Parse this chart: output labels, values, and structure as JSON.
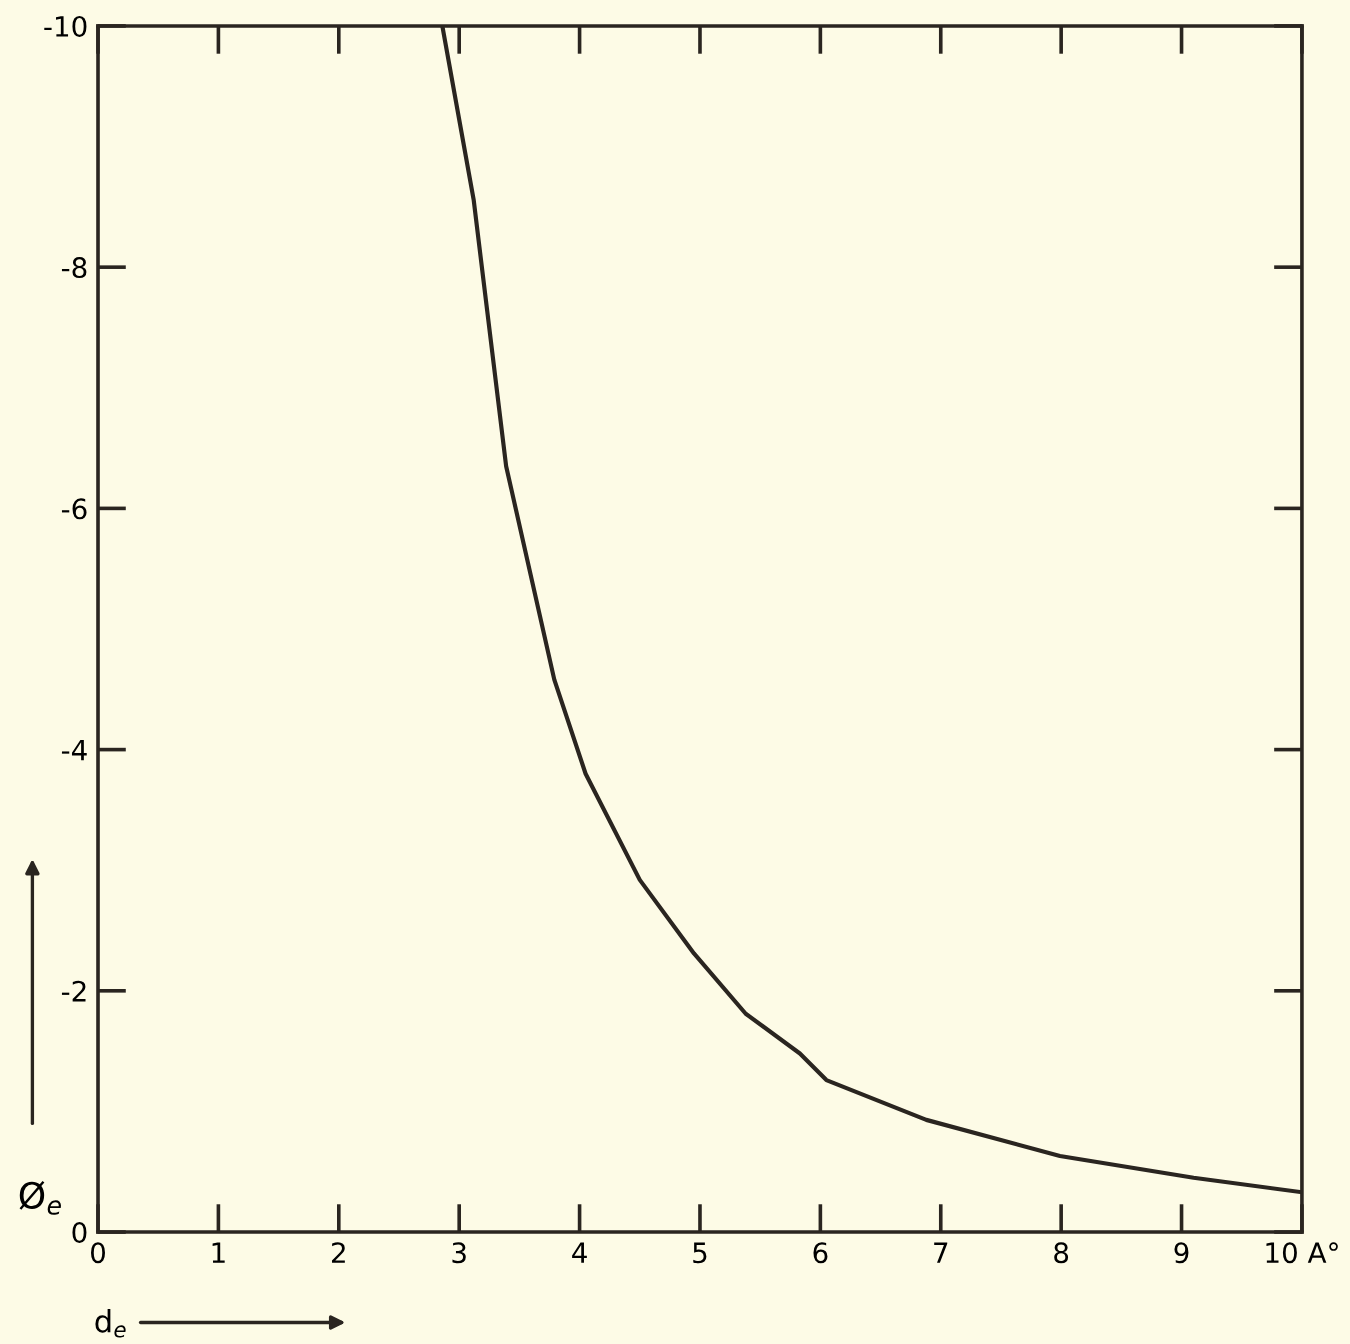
{
  "chart_data": {
    "type": "line",
    "xlabel": "d$_{e}$",
    "ylabel": "Ø$_{e}$",
    "xlim": [
      0,
      10
    ],
    "ylim": [
      0,
      -10
    ],
    "xticks": [
      0,
      1,
      2,
      3,
      4,
      5,
      6,
      7,
      8,
      9,
      {
        "value": 10,
        "label": "10 A°"
      }
    ],
    "yticks": [
      0,
      -2,
      -4,
      -6,
      -8,
      -10
    ],
    "grid": false,
    "legend": false,
    "line_style": "solid",
    "marker": "none",
    "series": [
      {
        "color": "#2a2520",
        "x": [
          2.86,
          3.12,
          3.39,
          3.79,
          4.05,
          4.5,
          4.95,
          5.38,
          5.83,
          6.05,
          6.88,
          7.99,
          9.1,
          10.0
        ],
        "values": [
          -10,
          -8.56,
          -6.35,
          -4.58,
          -3.8,
          -2.92,
          -2.31,
          -1.81,
          -1.48,
          -1.26,
          -0.93,
          -0.63,
          -0.45,
          -0.33
        ]
      }
    ]
  }
}
